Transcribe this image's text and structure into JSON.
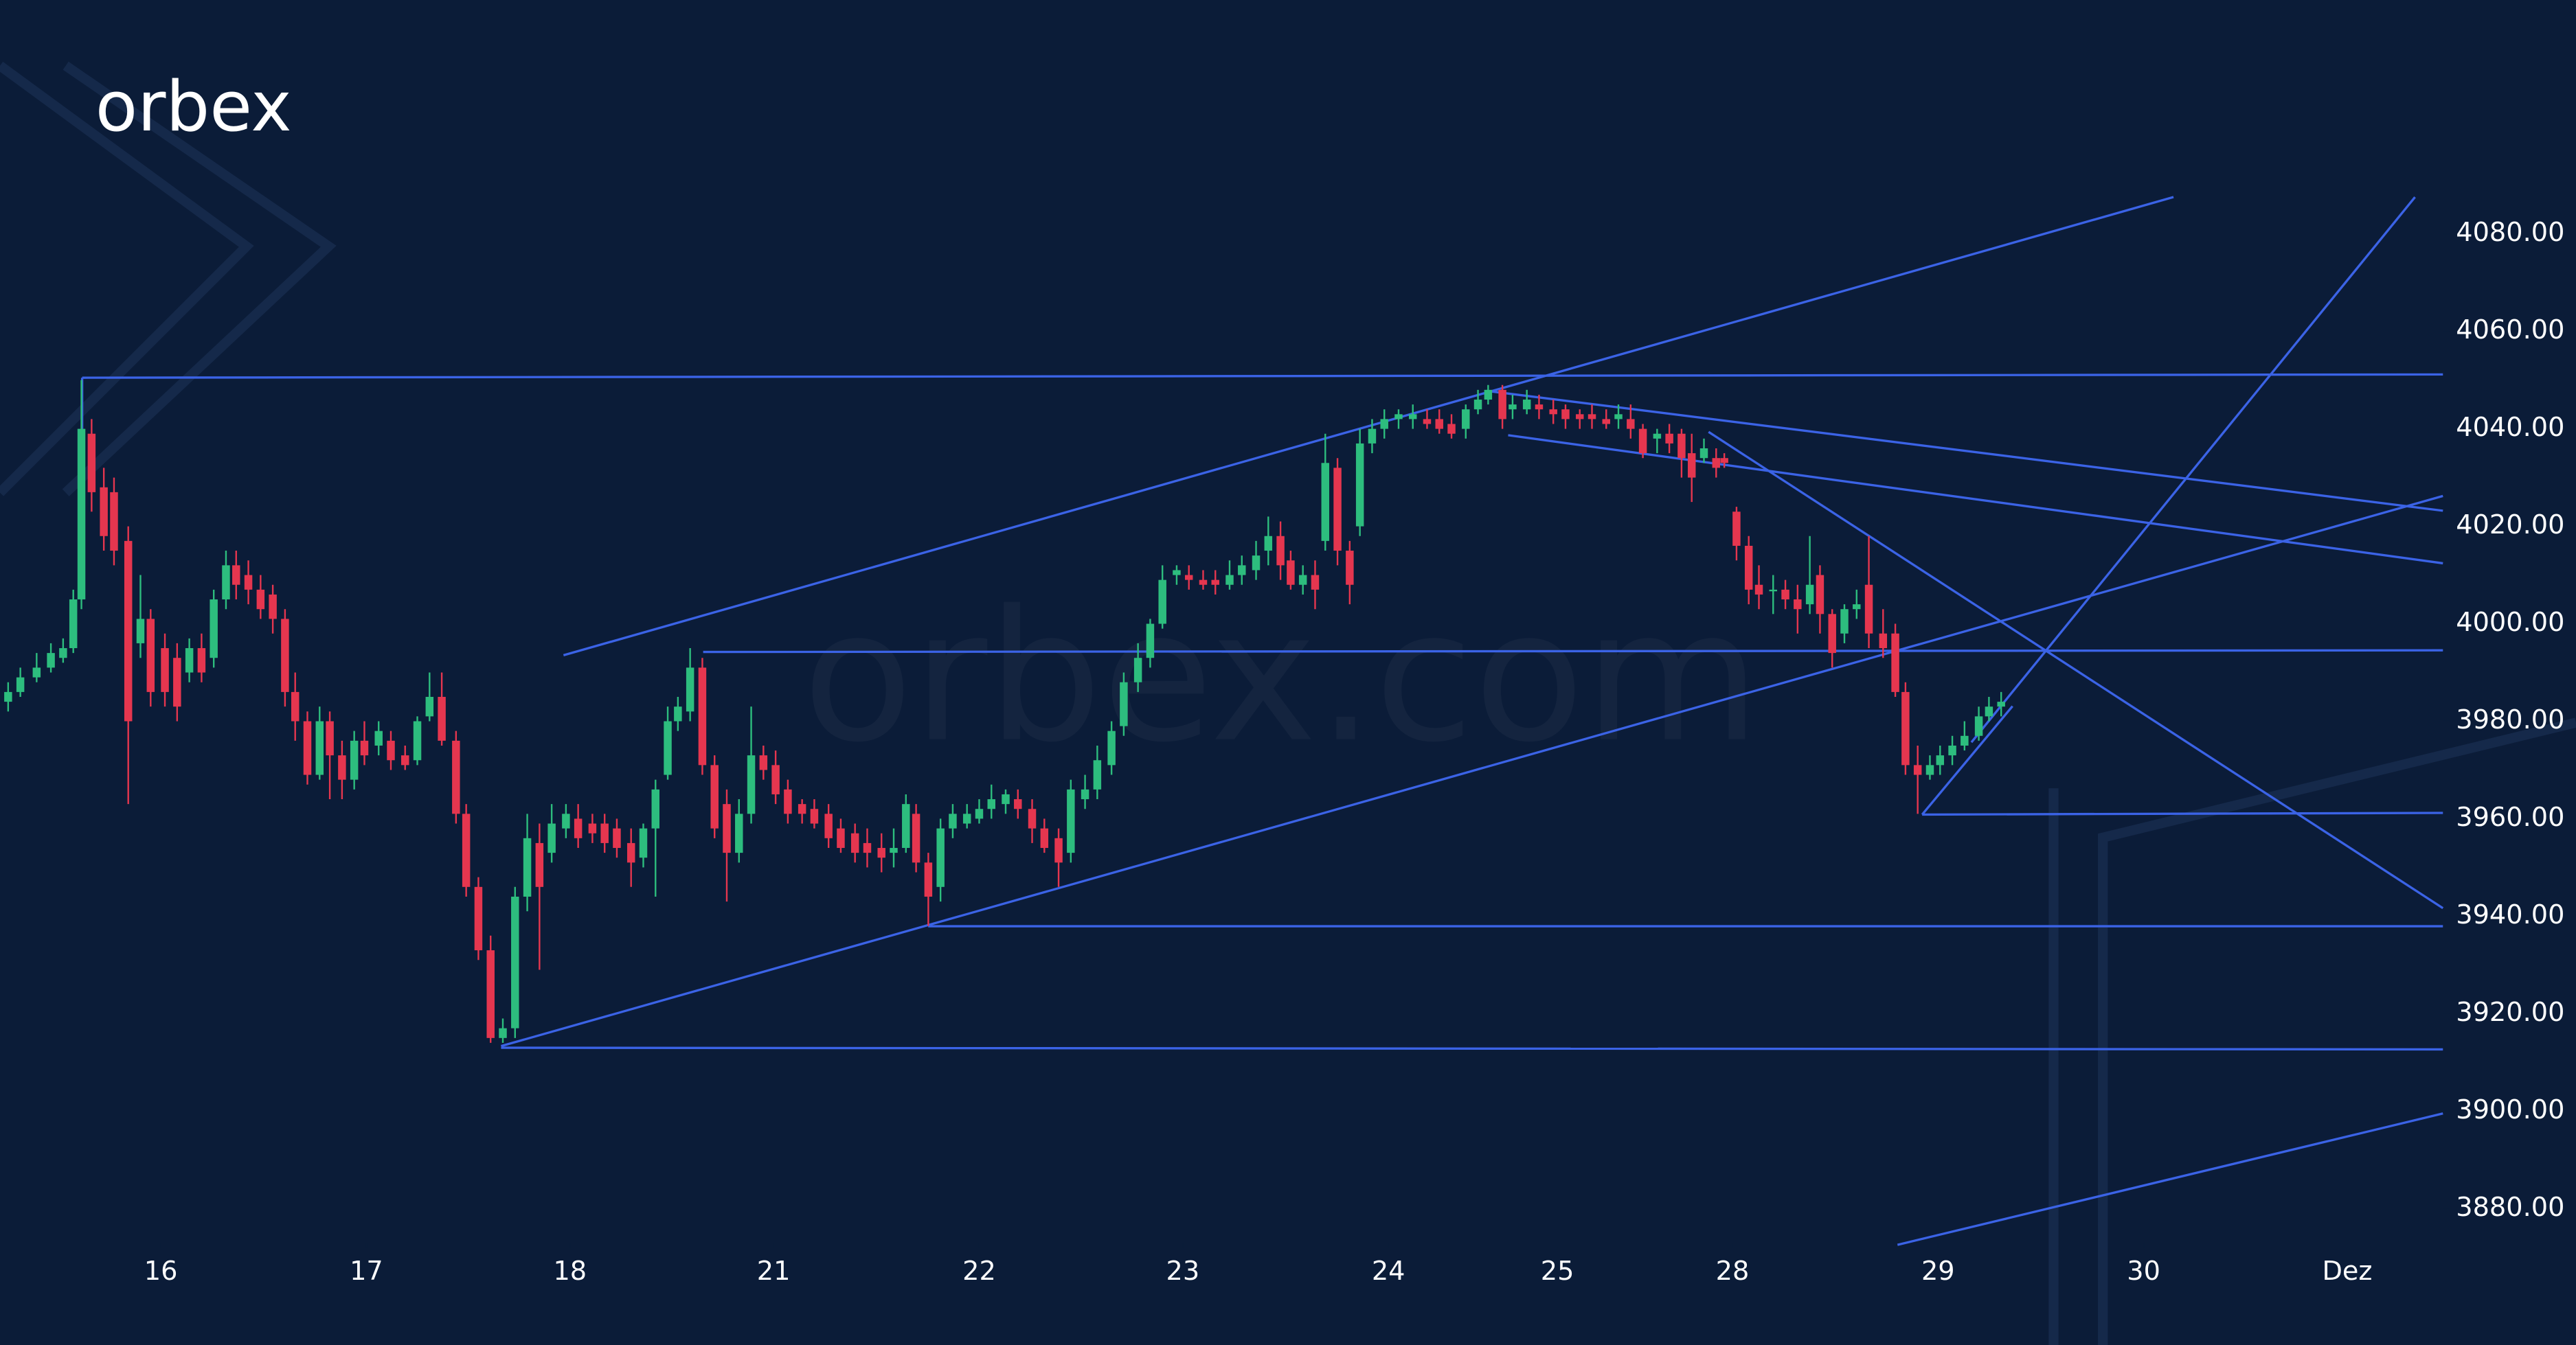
{
  "logo": "orbex",
  "watermark": "orbex.com",
  "chart_data": {
    "type": "candlestick",
    "up_color": "#2dbd7e",
    "down_color": "#e5364f",
    "xlim": [
      0,
      12
    ],
    "ylim": [
      3852,
      4128
    ],
    "xticks": [
      {
        "value": 0.79,
        "label": "16"
      },
      {
        "value": 1.8,
        "label": "17"
      },
      {
        "value": 2.8,
        "label": "18"
      },
      {
        "value": 3.8,
        "label": "21"
      },
      {
        "value": 4.81,
        "label": "22"
      },
      {
        "value": 5.81,
        "label": "23"
      },
      {
        "value": 6.82,
        "label": "24"
      },
      {
        "value": 7.65,
        "label": "25"
      },
      {
        "value": 8.51,
        "label": "28"
      },
      {
        "value": 9.52,
        "label": "29"
      },
      {
        "value": 10.53,
        "label": "30"
      },
      {
        "value": 11.53,
        "label": "Dez"
      }
    ],
    "yticks": [
      {
        "value": 3880,
        "label": "3880.00"
      },
      {
        "value": 3900,
        "label": "3900.00"
      },
      {
        "value": 3920,
        "label": "3920.00"
      },
      {
        "value": 3940,
        "label": "3940.00"
      },
      {
        "value": 3960,
        "label": "3960.00"
      },
      {
        "value": 3980,
        "label": "3980.00"
      },
      {
        "value": 4000,
        "label": "4000.00"
      },
      {
        "value": 4020,
        "label": "4020.00"
      },
      {
        "value": 4040,
        "label": "4040.00"
      },
      {
        "value": 4060,
        "label": "4060.00"
      },
      {
        "value": 4080,
        "label": "4080.00"
      }
    ],
    "x": [
      0.04,
      0.1,
      0.18,
      0.25,
      0.31,
      0.36,
      0.4,
      0.45,
      0.51,
      0.56,
      0.63,
      0.69,
      0.74,
      0.81,
      0.87,
      0.93,
      0.99,
      1.05,
      1.11,
      1.16,
      1.22,
      1.28,
      1.34,
      1.4,
      1.45,
      1.51,
      1.57,
      1.62,
      1.68,
      1.74,
      1.79,
      1.86,
      1.92,
      1.99,
      2.05,
      2.11,
      2.17,
      2.24,
      2.29,
      2.35,
      2.41,
      2.47,
      2.53,
      2.59,
      2.65,
      2.71,
      2.78,
      2.84,
      2.91,
      2.97,
      3.03,
      3.1,
      3.16,
      3.22,
      3.28,
      3.33,
      3.39,
      3.45,
      3.51,
      3.57,
      3.63,
      3.69,
      3.75,
      3.81,
      3.87,
      3.94,
      4.0,
      4.07,
      4.13,
      4.2,
      4.26,
      4.33,
      4.39,
      4.45,
      4.5,
      4.56,
      4.62,
      4.68,
      4.75,
      4.81,
      4.87,
      4.94,
      5.0,
      5.07,
      5.13,
      5.2,
      5.26,
      5.33,
      5.39,
      5.46,
      5.52,
      5.59,
      5.65,
      5.71,
      5.78,
      5.84,
      5.91,
      5.97,
      6.04,
      6.1,
      6.17,
      6.23,
      6.29,
      6.34,
      6.4,
      6.46,
      6.51,
      6.57,
      6.63,
      6.68,
      6.74,
      6.8,
      6.87,
      6.94,
      7.01,
      7.07,
      7.13,
      7.2,
      7.26,
      7.31,
      7.38,
      7.43,
      7.5,
      7.56,
      7.63,
      7.69,
      7.76,
      7.82,
      7.89,
      7.95,
      8.01,
      8.07,
      8.14,
      8.2,
      8.26,
      8.31,
      8.37,
      8.43,
      8.47,
      8.53,
      8.59,
      8.64,
      8.71,
      8.77,
      8.83,
      8.89,
      8.94,
      9.0,
      9.06,
      9.12,
      9.18,
      9.25,
      9.31,
      9.36,
      9.42,
      9.48,
      9.53,
      9.59,
      9.65,
      9.72,
      9.77,
      9.83
    ],
    "open": [
      3984,
      3986,
      3989,
      3991,
      3993,
      3995,
      4005,
      4039,
      4028,
      4027,
      4017,
      3996,
      4001,
      3995,
      3993,
      3990,
      3995,
      3993,
      4005,
      4012,
      4010,
      4007,
      4006,
      4001,
      3986,
      3980,
      3969,
      3980,
      3973,
      3968,
      3976,
      3975,
      3976,
      3973,
      3972,
      3981,
      3985,
      3976,
      3961,
      3946,
      3933,
      3915,
      3917,
      3944,
      3955,
      3953,
      3958,
      3960,
      3959,
      3959,
      3958,
      3955,
      3952,
      3958,
      3969,
      3980,
      3982,
      3991,
      3971,
      3963,
      3953,
      3961,
      3973,
      3971,
      3966,
      3963,
      3962,
      3961,
      3958,
      3957,
      3955,
      3954,
      3953,
      3954,
      3961,
      3951,
      3946,
      3958,
      3959,
      3960,
      3962,
      3963,
      3964,
      3962,
      3958,
      3956,
      3953,
      3964,
      3966,
      3971,
      3979,
      3988,
      3993,
      4000,
      4010,
      4010,
      4009,
      4009,
      4008,
      4010,
      4011,
      4015,
      4018,
      4013,
      4008,
      4010,
      4017,
      4032,
      4015,
      4020,
      4037,
      4040,
      4042,
      4042,
      4042,
      4042,
      4041,
      4040,
      4044,
      4046,
      4048,
      4044,
      4044,
      4045,
      4044,
      4044,
      4043,
      4043,
      4042,
      4042,
      4042,
      4040,
      4038,
      4039,
      4039,
      4035,
      4034,
      4034,
      4034,
      4023,
      4016,
      4008,
      4007,
      4007,
      4005,
      4004,
      4010,
      4002,
      3998,
      4003,
      4008,
      3998,
      3998,
      3986,
      3971,
      3969,
      3971,
      3973,
      3975,
      3977,
      3981,
      3983
    ],
    "high": [
      3988,
      3991,
      3994,
      3996,
      3997,
      4007,
      4050,
      4042,
      4032,
      4030,
      4020,
      4010,
      4003,
      3998,
      3996,
      3997,
      3998,
      4007,
      4015,
      4015,
      4013,
      4010,
      4008,
      4003,
      3990,
      3982,
      3983,
      3982,
      3976,
      3978,
      3980,
      3980,
      3978,
      3975,
      3981,
      3990,
      3990,
      3978,
      3963,
      3948,
      3936,
      3919,
      3946,
      3961,
      3959,
      3963,
      3963,
      3963,
      3961,
      3961,
      3960,
      3958,
      3959,
      3968,
      3983,
      3985,
      3995,
      3993,
      3973,
      3966,
      3964,
      3983,
      3975,
      3974,
      3968,
      3964,
      3964,
      3963,
      3960,
      3959,
      3958,
      3957,
      3958,
      3965,
      3963,
      3953,
      3960,
      3963,
      3963,
      3964,
      3967,
      3966,
      3966,
      3964,
      3960,
      3958,
      3968,
      3969,
      3975,
      3980,
      3990,
      3996,
      4001,
      4012,
      4012,
      4012,
      4011,
      4011,
      4013,
      4014,
      4017,
      4022,
      4021,
      4015,
      4012,
      4013,
      4039,
      4034,
      4017,
      4040,
      4042,
      4044,
      4044,
      4045,
      4044,
      4044,
      4043,
      4045,
      4048,
      4049,
      4049,
      4047,
      4048,
      4047,
      4046,
      4045,
      4044,
      4045,
      4044,
      4045,
      4045,
      4041,
      4040,
      4041,
      4040,
      4039,
      4038,
      4036,
      4035,
      4024,
      4018,
      4012,
      4010,
      4009,
      4008,
      4018,
      4012,
      4003,
      4004,
      4007,
      4018,
      4003,
      4000,
      3988,
      3975,
      3973,
      3975,
      3977,
      3980,
      3983,
      3985,
      3986
    ],
    "low": [
      3982,
      3985,
      3988,
      3990,
      3992,
      3994,
      4003,
      4023,
      4015,
      4012,
      3963,
      3993,
      3983,
      3983,
      3980,
      3988,
      3988,
      3991,
      4003,
      4005,
      4004,
      4001,
      3998,
      3983,
      3976,
      3967,
      3968,
      3964,
      3964,
      3966,
      3971,
      3973,
      3970,
      3970,
      3971,
      3980,
      3975,
      3959,
      3944,
      3931,
      3914,
      3914,
      3915,
      3941,
      3929,
      3951,
      3956,
      3954,
      3955,
      3953,
      3952,
      3946,
      3950,
      3944,
      3968,
      3978,
      3980,
      3969,
      3956,
      3943,
      3951,
      3959,
      3968,
      3963,
      3959,
      3959,
      3958,
      3954,
      3953,
      3951,
      3950,
      3949,
      3950,
      3953,
      3949,
      3938,
      3943,
      3956,
      3958,
      3959,
      3960,
      3961,
      3960,
      3955,
      3953,
      3946,
      3951,
      3962,
      3964,
      3969,
      3977,
      3986,
      3991,
      3999,
      4008,
      4007,
      4007,
      4006,
      4007,
      4008,
      4009,
      4012,
      4009,
      4007,
      4006,
      4003,
      4015,
      4012,
      4004,
      4018,
      4035,
      4038,
      4040,
      4040,
      4040,
      4039,
      4038,
      4038,
      4043,
      4045,
      4040,
      4042,
      4043,
      4042,
      4041,
      4040,
      4040,
      4040,
      4040,
      4040,
      4038,
      4034,
      4035,
      4035,
      4030,
      4025,
      4033,
      4030,
      4032,
      4013,
      4004,
      4003,
      4002,
      4003,
      3998,
      4002,
      3998,
      3991,
      3996,
      4001,
      3995,
      3993,
      3985,
      3969,
      3961,
      3968,
      3969,
      3971,
      3974,
      3976,
      3980,
      3981
    ],
    "close": [
      3986,
      3989,
      3991,
      3994,
      3995,
      4005,
      4040,
      4027,
      4018,
      4015,
      3980,
      4001,
      3986,
      3986,
      3983,
      3995,
      3990,
      4005,
      4012,
      4008,
      4007,
      4003,
      4001,
      3986,
      3980,
      3969,
      3980,
      3973,
      3968,
      3976,
      3973,
      3978,
      3972,
      3971,
      3980,
      3985,
      3976,
      3961,
      3946,
      3933,
      3915,
      3917,
      3944,
      3956,
      3946,
      3959,
      3961,
      3956,
      3957,
      3955,
      3954,
      3951,
      3958,
      3966,
      3980,
      3983,
      3991,
      3971,
      3958,
      3953,
      3961,
      3973,
      3970,
      3965,
      3961,
      3961,
      3959,
      3956,
      3954,
      3953,
      3953,
      3952,
      3954,
      3963,
      3951,
      3944,
      3958,
      3961,
      3961,
      3962,
      3964,
      3965,
      3962,
      3958,
      3954,
      3951,
      3966,
      3966,
      3972,
      3978,
      3988,
      3993,
      4000,
      4009,
      4011,
      4009,
      4008,
      4008,
      4010,
      4012,
      4014,
      4018,
      4012,
      4008,
      4010,
      4007,
      4033,
      4015,
      4008,
      4037,
      4040,
      4042,
      4043,
      4043,
      4041,
      4040,
      4039,
      4044,
      4046,
      4048,
      4042,
      4045,
      4046,
      4044,
      4043,
      4042,
      4042,
      4042,
      4041,
      4043,
      4040,
      4035,
      4039,
      4037,
      4034,
      4030,
      4036,
      4032,
      4033,
      4016,
      4007,
      4006,
      4007,
      4005,
      4003,
      4008,
      4002,
      3994,
      4003,
      4004,
      3998,
      3995,
      3986,
      3971,
      3969,
      3971,
      3973,
      3975,
      3977,
      3981,
      3983,
      3984
    ]
  }
}
